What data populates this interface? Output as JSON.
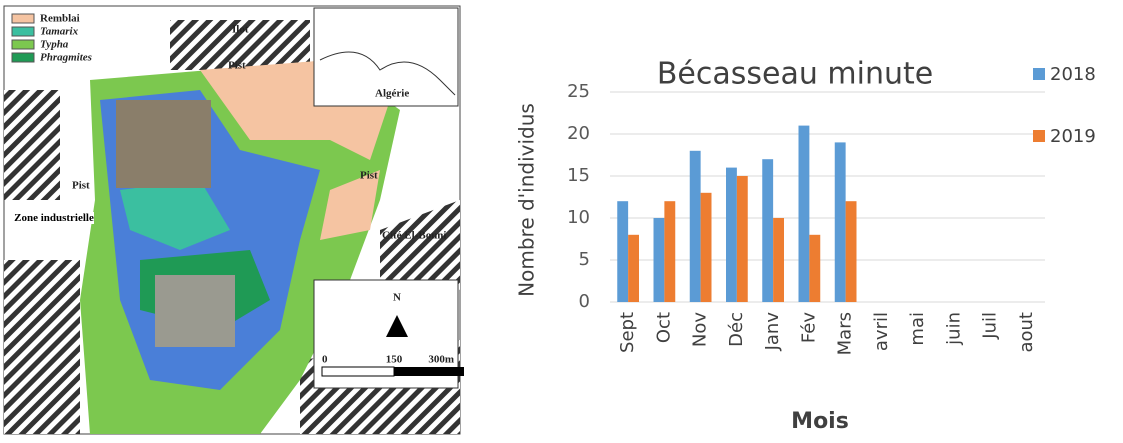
{
  "map": {
    "legend": [
      "Remblai",
      "Tamarix",
      "Typha",
      "Phragmites"
    ],
    "labels": {
      "ilot": "Ilot",
      "pist1": "Pist",
      "pist2": "Pist",
      "pist3": "Pist",
      "zone": "Zone industrielle",
      "cite": "Cité El-Bouni",
      "algerie": "Algérie"
    },
    "north": "N",
    "scale": [
      "0",
      "150",
      "300m"
    ]
  },
  "chart_data": {
    "type": "bar",
    "title": "Bécasseau minute",
    "x_label": "Mois",
    "y_label": "Nombre d'individus",
    "categories": [
      "Sept",
      "Oct",
      "Nov",
      "Déc",
      "Janv",
      "Fév",
      "Mars",
      "avril",
      "mai",
      "juin",
      "Juil",
      "aout"
    ],
    "series": [
      {
        "name": "2018",
        "color": "#5b9bd5",
        "values": [
          12,
          10,
          18,
          16,
          17,
          21,
          19,
          null,
          null,
          null,
          null,
          null
        ]
      },
      {
        "name": "2019",
        "color": "#ed7d31",
        "values": [
          8,
          12,
          13,
          15,
          10,
          8,
          12,
          null,
          null,
          null,
          null,
          null
        ]
      }
    ],
    "ylim": [
      0,
      25
    ],
    "yticks": [
      0,
      5,
      10,
      15,
      20,
      25
    ],
    "grid": true
  }
}
